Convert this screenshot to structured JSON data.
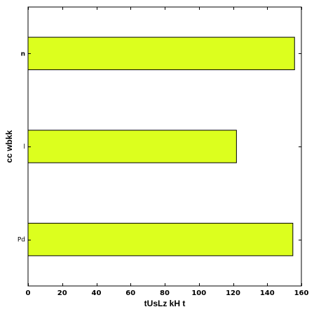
{
  "chart_data": {
    "type": "bar",
    "orientation": "horizontal",
    "categories": [
      "Pd",
      "l",
      "n"
    ],
    "values": [
      155,
      122,
      156
    ],
    "xlabel": "tUsLz kH t",
    "ylabel": "cc wbkk",
    "xlim": [
      0,
      160
    ],
    "xticks": [
      0,
      20,
      40,
      60,
      80,
      100,
      120,
      140,
      160
    ],
    "grid": false,
    "bar_color": "#dcff1e",
    "bar_edge_color": "#000000"
  }
}
